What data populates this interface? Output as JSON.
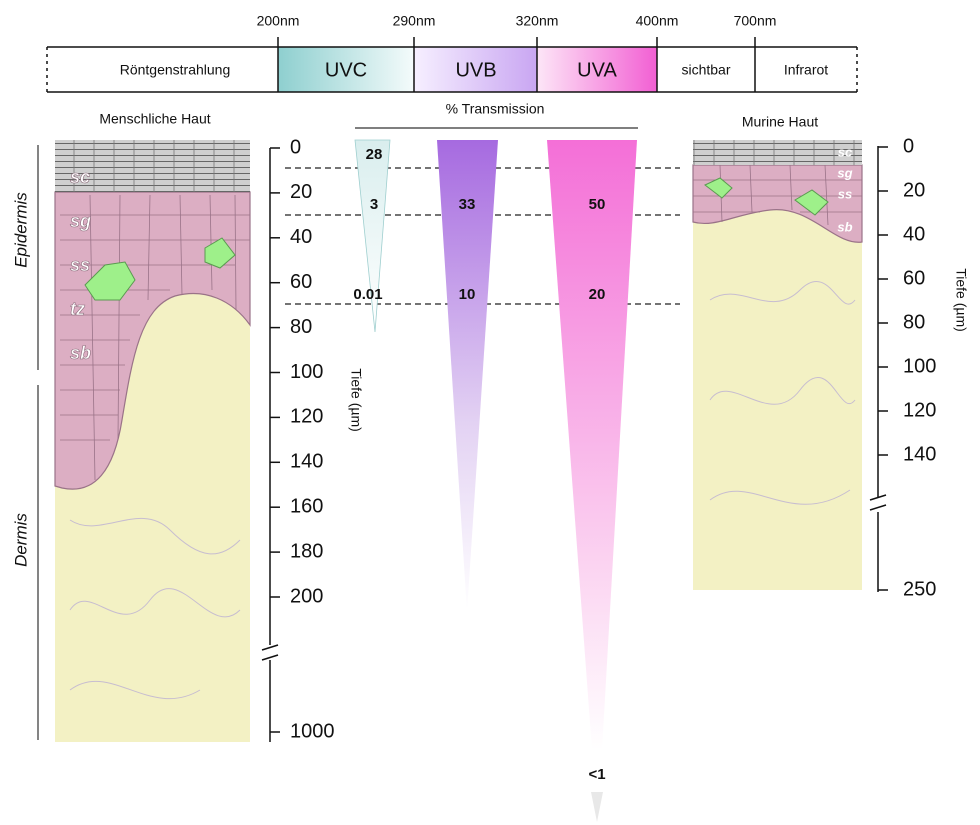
{
  "spectrum": {
    "wavelengths": [
      "200nm",
      "290nm",
      "320nm",
      "400nm",
      "700nm"
    ],
    "bands": [
      "Röntgenstrahlung",
      "UVC",
      "UVB",
      "UVA",
      "sichtbar",
      "Infrarot"
    ]
  },
  "transmission": {
    "title": "% Transmission",
    "uvc": [
      "28",
      "3",
      "0.01"
    ],
    "uvb": [
      "33",
      "10"
    ],
    "uva": [
      "50",
      "20",
      "<1"
    ]
  },
  "human_skin": {
    "title": "Menschliche Haut",
    "layers": [
      "sc",
      "sg",
      "ss",
      "tz",
      "sb"
    ],
    "regions": [
      "Epidermis",
      "Dermis"
    ],
    "axis_title": "Tiefe (µm)",
    "ticks": [
      0,
      20,
      40,
      60,
      80,
      100,
      120,
      140,
      160,
      180,
      200,
      1000
    ]
  },
  "murine_skin": {
    "title": "Murine Haut",
    "layers": [
      "sc",
      "sg",
      "ss",
      "sb"
    ],
    "axis_title": "Tiefe (µm)",
    "ticks": [
      0,
      20,
      40,
      60,
      80,
      100,
      120,
      140,
      250
    ]
  }
}
